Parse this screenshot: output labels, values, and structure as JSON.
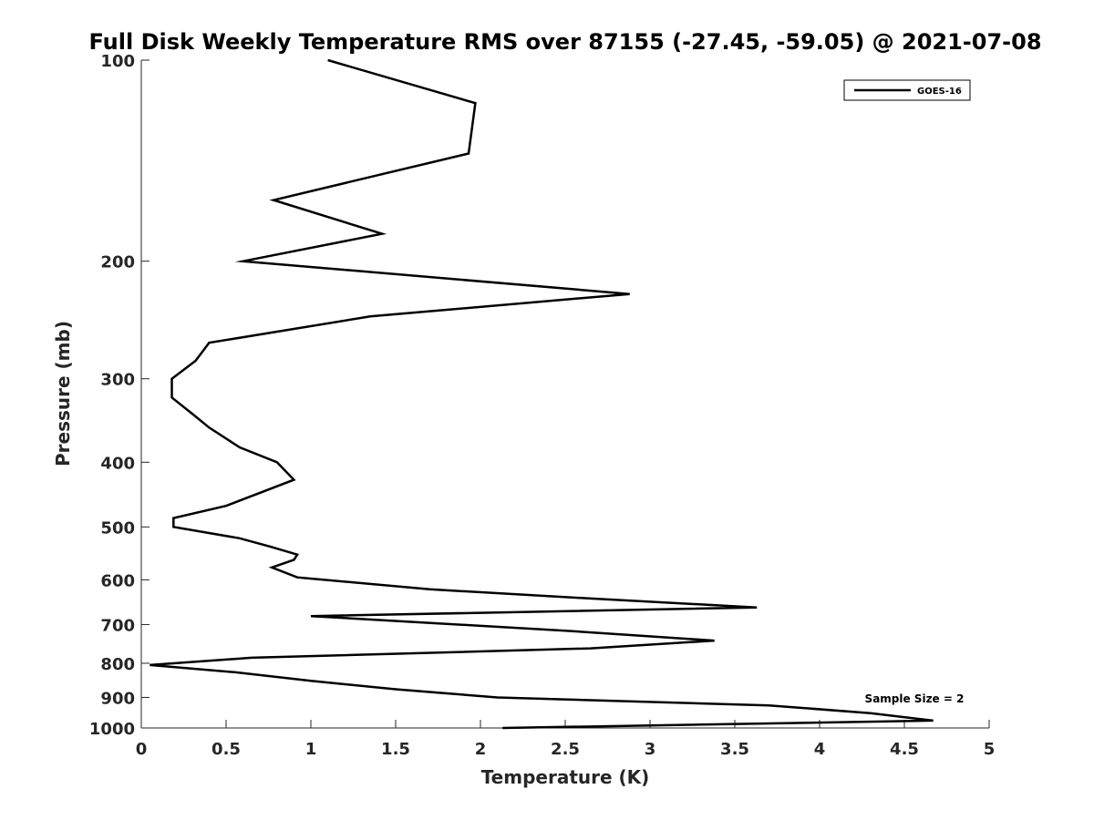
{
  "chart_data": {
    "type": "line",
    "title": "Full Disk Weekly Temperature RMS over 87155 (-27.45, -59.05) @ 2021-07-08",
    "xlabel": "Temperature (K)",
    "ylabel": "Pressure (mb)",
    "xlim": [
      0,
      5
    ],
    "ylim": [
      100,
      1000
    ],
    "y_scale": "log",
    "y_reversed": true,
    "grid": false,
    "legend_position": "top-right",
    "x_ticks": [
      "0",
      "0.5",
      "1",
      "1.5",
      "2",
      "2.5",
      "3",
      "3.5",
      "4",
      "4.5",
      "5"
    ],
    "y_ticks": [
      "100",
      "200",
      "300",
      "400",
      "500",
      "600",
      "700",
      "800",
      "900",
      "1000"
    ],
    "annotation": "Sample Size = 2",
    "series": [
      {
        "name": "GOES-16",
        "color": "#000000",
        "x": [
          2.13,
          4.67,
          4.3,
          3.7,
          2.1,
          1.5,
          1.0,
          0.55,
          0.05,
          0.65,
          2.65,
          3.38,
          2.5,
          1.0,
          3.63,
          2.65,
          1.7,
          0.92,
          0.77,
          0.9,
          0.92,
          0.76,
          0.58,
          0.19,
          0.19,
          0.5,
          0.9,
          0.8,
          0.58,
          0.4,
          0.31,
          0.18,
          0.18,
          0.32,
          0.4,
          1.35,
          2.88,
          0.6,
          1.42,
          0.78,
          1.93,
          1.97,
          1.1
        ],
        "y": [
          1000,
          975,
          950,
          925,
          900,
          875,
          850,
          825,
          805,
          785,
          760,
          740,
          715,
          680,
          660,
          640,
          620,
          595,
          575,
          560,
          550,
          535,
          520,
          500,
          485,
          465,
          425,
          400,
          380,
          355,
          340,
          320,
          300,
          282,
          265,
          242,
          224,
          200,
          182,
          162,
          138,
          116,
          100
        ]
      }
    ]
  }
}
